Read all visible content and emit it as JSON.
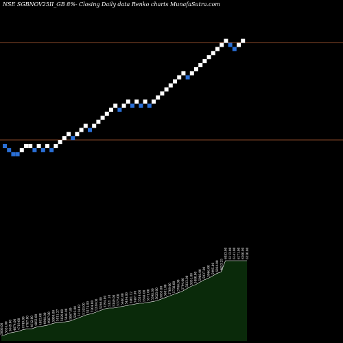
{
  "chart_data": {
    "type": "renko",
    "title": "NSE SGBNOV25II_GB 8%-  Closing Daily data  Renko  charts MunafaSutra.com",
    "colors": {
      "background": "#000000",
      "up_brick": "#ffffff",
      "down_brick": "#2a6fd6",
      "reference_line": "#8b4a2a",
      "volume_area": "#0a2a0a",
      "volume_outline": "#ffffff",
      "volume_labels": "#ffffff"
    },
    "reference_lines": [
      {
        "level": "upper"
      },
      {
        "level": "lower"
      }
    ],
    "bricks": [
      {
        "dir": "down",
        "level": 0
      },
      {
        "dir": "down",
        "level": -1
      },
      {
        "dir": "down",
        "level": -2
      },
      {
        "dir": "down",
        "level": -2
      },
      {
        "dir": "up",
        "level": -1
      },
      {
        "dir": "up",
        "level": 0
      },
      {
        "dir": "up",
        "level": 0
      },
      {
        "dir": "down",
        "level": -1
      },
      {
        "dir": "up",
        "level": 0
      },
      {
        "dir": "down",
        "level": -1
      },
      {
        "dir": "up",
        "level": 0
      },
      {
        "dir": "down",
        "level": -1
      },
      {
        "dir": "up",
        "level": 0
      },
      {
        "dir": "up",
        "level": 1
      },
      {
        "dir": "up",
        "level": 2
      },
      {
        "dir": "up",
        "level": 3
      },
      {
        "dir": "down",
        "level": 2
      },
      {
        "dir": "up",
        "level": 3
      },
      {
        "dir": "up",
        "level": 4
      },
      {
        "dir": "up",
        "level": 5
      },
      {
        "dir": "down",
        "level": 4
      },
      {
        "dir": "up",
        "level": 5
      },
      {
        "dir": "up",
        "level": 6
      },
      {
        "dir": "up",
        "level": 7
      },
      {
        "dir": "up",
        "level": 8
      },
      {
        "dir": "up",
        "level": 9
      },
      {
        "dir": "up",
        "level": 10
      },
      {
        "dir": "down",
        "level": 9
      },
      {
        "dir": "up",
        "level": 10
      },
      {
        "dir": "up",
        "level": 11
      },
      {
        "dir": "down",
        "level": 10
      },
      {
        "dir": "up",
        "level": 11
      },
      {
        "dir": "down",
        "level": 10
      },
      {
        "dir": "up",
        "level": 11
      },
      {
        "dir": "down",
        "level": 10
      },
      {
        "dir": "up",
        "level": 11
      },
      {
        "dir": "up",
        "level": 12
      },
      {
        "dir": "up",
        "level": 13
      },
      {
        "dir": "up",
        "level": 14
      },
      {
        "dir": "up",
        "level": 15
      },
      {
        "dir": "up",
        "level": 16
      },
      {
        "dir": "up",
        "level": 17
      },
      {
        "dir": "up",
        "level": 18
      },
      {
        "dir": "down",
        "level": 17
      },
      {
        "dir": "up",
        "level": 18
      },
      {
        "dir": "up",
        "level": 19
      },
      {
        "dir": "up",
        "level": 20
      },
      {
        "dir": "up",
        "level": 21
      },
      {
        "dir": "up",
        "level": 22
      },
      {
        "dir": "up",
        "level": 23
      },
      {
        "dir": "up",
        "level": 24
      },
      {
        "dir": "up",
        "level": 25
      },
      {
        "dir": "up",
        "level": 26
      },
      {
        "dir": "down",
        "level": 25
      },
      {
        "dir": "down",
        "level": 24
      },
      {
        "dir": "up",
        "level": 25
      },
      {
        "dir": "up",
        "level": 26
      }
    ],
    "volume_levels": [
      6,
      8,
      10,
      11,
      12,
      14,
      15,
      15,
      17,
      18,
      19,
      20,
      22,
      23,
      23,
      24,
      25,
      27,
      29,
      31,
      33,
      34,
      36,
      38,
      40,
      41,
      41,
      42,
      43,
      44,
      45,
      46,
      47,
      47,
      48,
      49,
      50,
      52,
      54,
      56,
      58,
      60,
      62,
      65,
      68,
      70,
      73,
      76,
      78,
      81,
      84,
      86,
      100,
      100,
      100,
      100,
      100,
      100
    ],
    "volume_labels": [
      "5606.00",
      "5624.00",
      "5649.00",
      "4674.00",
      "4719.00",
      "4749.00",
      "4787.00",
      "4812.00",
      "4863.00",
      "4883.00",
      "4908.00",
      "4987.00",
      "5009.00",
      "5011.27",
      "5029.00",
      "5046.00",
      "5067.89",
      "5093.00",
      "5114.02",
      "5143.00",
      "5174.00",
      "5204.00",
      "5239.00",
      "5266.00",
      "5294.00",
      "5321.10",
      "5349.00",
      "5375.00",
      "5406.00",
      "5434.00",
      "5461.12",
      "5487.00",
      "5514.00",
      "5544.00",
      "5571.00",
      "5598.00",
      "5625.00",
      "5653.00",
      "5681.00",
      "5709.00",
      "5738.00",
      "5766.00",
      "5794.00",
      "5823.00",
      "5851.00",
      "5880.00",
      "5908.00",
      "5937.00",
      "5966.00",
      "5995.00",
      "6024.00",
      "6053.25",
      "6083.00",
      "6112.00",
      "6141.00",
      "6171.00",
      "6200.00",
      "6230.00"
    ]
  }
}
